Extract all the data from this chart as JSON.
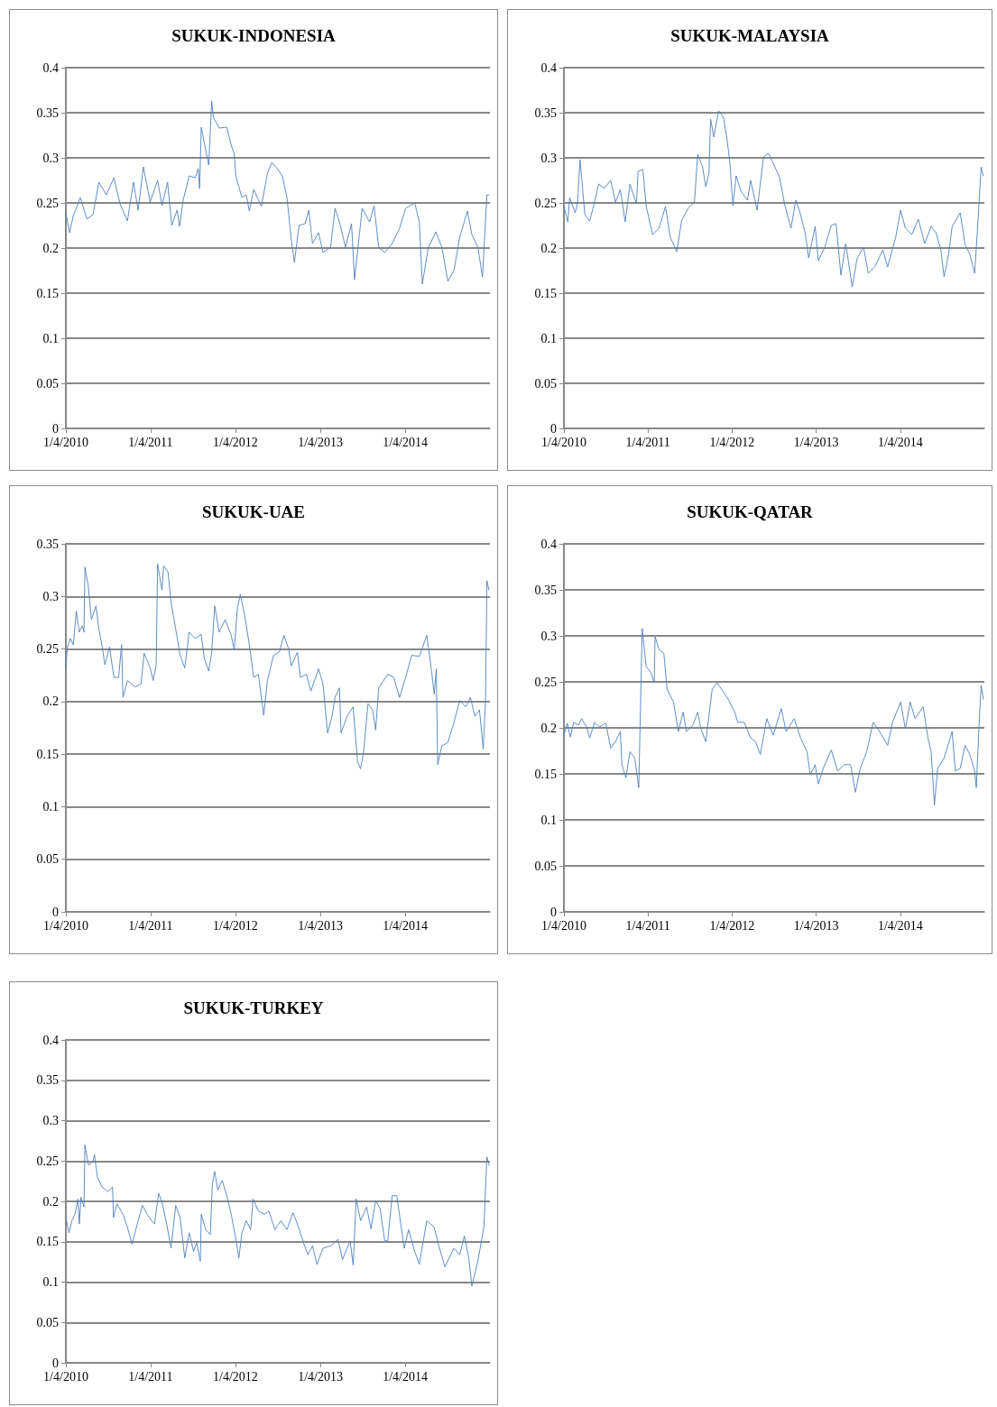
{
  "chart_data": [
    {
      "type": "line",
      "title": "SUKUK-INDONESIA",
      "color": "#4f81bd",
      "marker": "none",
      "grid": "y",
      "xlim": [
        "2010-01-04",
        "2015-01-04"
      ],
      "xticks": [
        {
          "value": "2010-01-04",
          "label": "1/4/2010"
        },
        {
          "value": "2011-01-04",
          "label": "1/4/2011"
        },
        {
          "value": "2012-01-04",
          "label": "1/4/2012"
        },
        {
          "value": "2013-01-04",
          "label": "1/4/2013"
        },
        {
          "value": "2014-01-04",
          "label": "1/4/2014"
        }
      ],
      "ylim": [
        0,
        0.4
      ],
      "yticks": [
        0,
        0.05,
        0.1,
        0.15,
        0.2,
        0.25,
        0.3,
        0.35,
        0.4
      ],
      "x": [
        "2010-01-04",
        "2010-01-20",
        "2010-02-04",
        "2010-03-07",
        "2010-04-05",
        "2010-05-01",
        "2010-05-26",
        "2010-06-28",
        "2010-07-30",
        "2010-08-25",
        "2010-09-26",
        "2010-10-22",
        "2010-11-11",
        "2010-12-04",
        "2011-01-02",
        "2011-02-03",
        "2011-02-22",
        "2011-03-18",
        "2011-04-05",
        "2011-04-28",
        "2011-05-09",
        "2011-05-24",
        "2011-06-19",
        "2011-07-15",
        "2011-07-28",
        "2011-08-03",
        "2011-08-10",
        "2011-09-11",
        "2011-09-24",
        "2011-10-01",
        "2011-10-26",
        "2011-11-28",
        "2011-12-17",
        "2011-12-30",
        "2012-01-06",
        "2012-02-01",
        "2012-02-20",
        "2012-03-04",
        "2012-03-23",
        "2012-04-25",
        "2012-05-21",
        "2012-06-09",
        "2012-07-05",
        "2012-07-24",
        "2012-08-13",
        "2012-09-01",
        "2012-09-14",
        "2012-10-04",
        "2012-10-30",
        "2012-11-15",
        "2012-12-01",
        "2012-12-27",
        "2013-01-15",
        "2013-02-17",
        "2013-03-08",
        "2013-03-27",
        "2013-04-22",
        "2013-05-18",
        "2013-05-31",
        "2013-07-03",
        "2013-08-04",
        "2013-08-23",
        "2013-09-12",
        "2013-10-08",
        "2013-11-09",
        "2013-12-11",
        "2014-01-06",
        "2014-02-14",
        "2014-03-06",
        "2014-03-19",
        "2014-04-13",
        "2014-05-16",
        "2014-06-11",
        "2014-07-07",
        "2014-08-02",
        "2014-08-27",
        "2014-09-29",
        "2014-10-18",
        "2014-11-13",
        "2014-12-03",
        "2014-12-22",
        "2014-12-31"
      ],
      "values": [
        0.239,
        0.217,
        0.235,
        0.256,
        0.232,
        0.237,
        0.273,
        0.259,
        0.278,
        0.249,
        0.23,
        0.273,
        0.242,
        0.29,
        0.251,
        0.275,
        0.247,
        0.273,
        0.225,
        0.242,
        0.224,
        0.253,
        0.28,
        0.278,
        0.288,
        0.266,
        0.334,
        0.292,
        0.363,
        0.345,
        0.333,
        0.334,
        0.314,
        0.304,
        0.28,
        0.256,
        0.259,
        0.241,
        0.265,
        0.246,
        0.283,
        0.295,
        0.287,
        0.28,
        0.256,
        0.208,
        0.184,
        0.225,
        0.227,
        0.242,
        0.205,
        0.217,
        0.195,
        0.201,
        0.244,
        0.229,
        0.201,
        0.227,
        0.165,
        0.244,
        0.229,
        0.247,
        0.201,
        0.195,
        0.205,
        0.222,
        0.244,
        0.25,
        0.229,
        0.16,
        0.2,
        0.218,
        0.201,
        0.163,
        0.175,
        0.212,
        0.241,
        0.215,
        0.201,
        0.168,
        0.259,
        0.259
      ]
    },
    {
      "type": "line",
      "title": "SUKUK-MALAYSIA",
      "color": "#4f81bd",
      "marker": "none",
      "grid": "y",
      "xlim": [
        "2010-01-04",
        "2015-01-04"
      ],
      "xticks": [
        {
          "value": "2010-01-04",
          "label": "1/4/2010"
        },
        {
          "value": "2011-01-04",
          "label": "1/4/2011"
        },
        {
          "value": "2012-01-04",
          "label": "1/4/2012"
        },
        {
          "value": "2013-01-04",
          "label": "1/4/2013"
        },
        {
          "value": "2014-01-04",
          "label": "1/4/2014"
        }
      ],
      "ylim": [
        0,
        0.4
      ],
      "yticks": [
        0,
        0.05,
        0.1,
        0.15,
        0.2,
        0.25,
        0.3,
        0.35,
        0.4
      ],
      "x": [
        "2010-01-04",
        "2010-01-21",
        "2010-01-29",
        "2010-02-22",
        "2010-03-04",
        "2010-03-15",
        "2010-03-26",
        "2010-04-05",
        "2010-04-26",
        "2010-05-17",
        "2010-06-04",
        "2010-06-28",
        "2010-07-26",
        "2010-08-16",
        "2010-09-06",
        "2010-09-27",
        "2010-10-18",
        "2010-11-15",
        "2010-11-22",
        "2010-12-13",
        "2010-12-27",
        "2011-01-24",
        "2011-02-21",
        "2011-03-21",
        "2011-04-11",
        "2011-05-09",
        "2011-05-30",
        "2011-06-27",
        "2011-07-25",
        "2011-08-08",
        "2011-08-29",
        "2011-09-12",
        "2011-09-26",
        "2011-10-03",
        "2011-10-17",
        "2011-11-07",
        "2011-11-28",
        "2011-12-12",
        "2011-12-25",
        "2012-01-08",
        "2012-01-22",
        "2012-02-12",
        "2012-03-11",
        "2012-03-25",
        "2012-04-22",
        "2012-05-20",
        "2012-06-10",
        "2012-07-01",
        "2012-07-29",
        "2012-08-19",
        "2012-09-16",
        "2012-10-07",
        "2012-10-28",
        "2012-11-18",
        "2012-12-02",
        "2012-12-30",
        "2013-01-13",
        "2013-02-10",
        "2013-03-10",
        "2013-03-31",
        "2013-04-21",
        "2013-05-12",
        "2013-06-09",
        "2013-06-30",
        "2013-07-28",
        "2013-08-18",
        "2013-09-15",
        "2013-10-20",
        "2013-11-10",
        "2013-12-15",
        "2014-01-05",
        "2014-01-26",
        "2014-02-23",
        "2014-03-23",
        "2014-04-20",
        "2014-05-18",
        "2014-06-08",
        "2014-06-29",
        "2014-07-13",
        "2014-08-03",
        "2014-08-17",
        "2014-09-21",
        "2014-10-12",
        "2014-11-02",
        "2014-11-23",
        "2014-12-07",
        "2014-12-21",
        "2014-12-31"
      ],
      "values": [
        0.246,
        0.229,
        0.256,
        0.239,
        0.249,
        0.298,
        0.266,
        0.237,
        0.23,
        0.251,
        0.271,
        0.266,
        0.275,
        0.251,
        0.265,
        0.229,
        0.271,
        0.249,
        0.285,
        0.287,
        0.247,
        0.215,
        0.222,
        0.246,
        0.212,
        0.196,
        0.23,
        0.244,
        0.251,
        0.304,
        0.29,
        0.268,
        0.283,
        0.343,
        0.323,
        0.352,
        0.345,
        0.323,
        0.297,
        0.247,
        0.28,
        0.263,
        0.253,
        0.275,
        0.242,
        0.301,
        0.305,
        0.294,
        0.278,
        0.249,
        0.222,
        0.253,
        0.237,
        0.215,
        0.189,
        0.224,
        0.186,
        0.201,
        0.225,
        0.227,
        0.17,
        0.205,
        0.157,
        0.188,
        0.201,
        0.172,
        0.179,
        0.198,
        0.179,
        0.212,
        0.242,
        0.222,
        0.215,
        0.232,
        0.205,
        0.224,
        0.217,
        0.198,
        0.168,
        0.195,
        0.224,
        0.239,
        0.204,
        0.193,
        0.172,
        0.229,
        0.29,
        0.28
      ]
    },
    {
      "type": "line",
      "title": "SUKUK-UAE",
      "color": "#4f81bd",
      "marker": "none",
      "grid": "y",
      "xlim": [
        "2010-01-04",
        "2015-01-04"
      ],
      "xticks": [
        {
          "value": "2010-01-04",
          "label": "1/4/2010"
        },
        {
          "value": "2011-01-04",
          "label": "1/4/2011"
        },
        {
          "value": "2012-01-04",
          "label": "1/4/2012"
        },
        {
          "value": "2013-01-04",
          "label": "1/4/2013"
        },
        {
          "value": "2014-01-04",
          "label": "1/4/2014"
        }
      ],
      "ylim": [
        0,
        0.35
      ],
      "yticks": [
        0,
        0.05,
        0.1,
        0.15,
        0.2,
        0.25,
        0.3,
        0.35
      ],
      "x": [
        "2010-01-04",
        "2010-01-10",
        "2010-01-23",
        "2010-02-05",
        "2010-02-18",
        "2010-03-03",
        "2010-03-16",
        "2010-03-23",
        "2010-03-27",
        "2010-04-11",
        "2010-04-24",
        "2010-05-14",
        "2010-05-26",
        "2010-06-08",
        "2010-06-21",
        "2010-07-11",
        "2010-07-30",
        "2010-08-19",
        "2010-09-01",
        "2010-09-07",
        "2010-09-26",
        "2010-10-29",
        "2010-11-24",
        "2010-12-07",
        "2011-01-02",
        "2011-01-15",
        "2011-01-28",
        "2011-02-03",
        "2011-02-22",
        "2011-03-01",
        "2011-03-20",
        "2011-04-02",
        "2011-04-22",
        "2011-05-11",
        "2011-05-31",
        "2011-06-19",
        "2011-07-15",
        "2011-08-10",
        "2011-08-23",
        "2011-09-11",
        "2011-09-24",
        "2011-10-07",
        "2011-10-26",
        "2011-11-21",
        "2011-12-17",
        "2011-12-30",
        "2012-01-12",
        "2012-01-25",
        "2012-02-14",
        "2012-03-04",
        "2012-03-23",
        "2012-04-12",
        "2012-05-05",
        "2012-05-21",
        "2012-06-16",
        "2012-07-11",
        "2012-07-31",
        "2012-08-19",
        "2012-09-01",
        "2012-09-27",
        "2012-10-10",
        "2012-11-05",
        "2012-11-24",
        "2012-12-27",
        "2013-01-15",
        "2013-02-04",
        "2013-02-23",
        "2013-03-08",
        "2013-03-27",
        "2013-04-03",
        "2013-04-29",
        "2013-05-25",
        "2013-06-13",
        "2013-06-26",
        "2013-07-09",
        "2013-07-28",
        "2013-08-17",
        "2013-08-30",
        "2013-09-12",
        "2013-10-21",
        "2013-11-16",
        "2013-12-11",
        "2014-01-06",
        "2014-02-01",
        "2014-03-06",
        "2014-04-07",
        "2014-04-26",
        "2014-05-09",
        "2014-05-18",
        "2014-05-24",
        "2014-06-11",
        "2014-07-07",
        "2014-08-02",
        "2014-08-27",
        "2014-09-22",
        "2014-10-12",
        "2014-10-31",
        "2014-11-20",
        "2014-12-06",
        "2014-12-16",
        "2014-12-22",
        "2014-12-31"
      ],
      "values": [
        0.232,
        0.251,
        0.26,
        0.254,
        0.286,
        0.266,
        0.272,
        0.266,
        0.328,
        0.309,
        0.278,
        0.291,
        0.269,
        0.254,
        0.235,
        0.252,
        0.223,
        0.223,
        0.254,
        0.204,
        0.22,
        0.214,
        0.217,
        0.246,
        0.232,
        0.22,
        0.235,
        0.331,
        0.306,
        0.329,
        0.323,
        0.294,
        0.269,
        0.244,
        0.232,
        0.266,
        0.26,
        0.264,
        0.241,
        0.229,
        0.247,
        0.291,
        0.266,
        0.278,
        0.263,
        0.249,
        0.288,
        0.302,
        0.281,
        0.254,
        0.223,
        0.226,
        0.187,
        0.22,
        0.244,
        0.247,
        0.263,
        0.251,
        0.234,
        0.247,
        0.223,
        0.226,
        0.21,
        0.231,
        0.217,
        0.17,
        0.186,
        0.204,
        0.213,
        0.17,
        0.186,
        0.195,
        0.143,
        0.136,
        0.152,
        0.198,
        0.192,
        0.173,
        0.213,
        0.226,
        0.223,
        0.204,
        0.223,
        0.244,
        0.243,
        0.263,
        0.232,
        0.207,
        0.231,
        0.14,
        0.158,
        0.161,
        0.18,
        0.201,
        0.195,
        0.204,
        0.186,
        0.192,
        0.155,
        0.201,
        0.315,
        0.306
      ]
    },
    {
      "type": "line",
      "title": "SUKUK-QATAR",
      "color": "#4f81bd",
      "marker": "none",
      "grid": "y",
      "xlim": [
        "2010-01-04",
        "2015-01-04"
      ],
      "xticks": [
        {
          "value": "2010-01-04",
          "label": "1/4/2010"
        },
        {
          "value": "2011-01-04",
          "label": "1/4/2011"
        },
        {
          "value": "2012-01-04",
          "label": "1/4/2012"
        },
        {
          "value": "2013-01-04",
          "label": "1/4/2013"
        },
        {
          "value": "2014-01-04",
          "label": "1/4/2014"
        }
      ],
      "ylim": [
        0,
        0.4
      ],
      "yticks": [
        0,
        0.05,
        0.1,
        0.15,
        0.2,
        0.25,
        0.3,
        0.35,
        0.4
      ],
      "x": [
        "2010-01-04",
        "2010-01-18",
        "2010-02-01",
        "2010-02-15",
        "2010-03-08",
        "2010-03-22",
        "2010-04-12",
        "2010-04-26",
        "2010-05-17",
        "2010-06-07",
        "2010-07-05",
        "2010-07-26",
        "2010-08-16",
        "2010-09-06",
        "2010-09-13",
        "2010-09-30",
        "2010-10-18",
        "2010-11-08",
        "2010-11-25",
        "2010-12-10",
        "2010-12-27",
        "2011-01-17",
        "2011-01-31",
        "2011-02-04",
        "2011-02-21",
        "2011-03-14",
        "2011-03-28",
        "2011-04-25",
        "2011-05-16",
        "2011-06-06",
        "2011-06-20",
        "2011-07-18",
        "2011-08-08",
        "2011-08-22",
        "2011-09-12",
        "2011-10-10",
        "2011-10-31",
        "2011-11-28",
        "2011-12-19",
        "2012-01-16",
        "2012-01-29",
        "2012-02-26",
        "2012-03-25",
        "2012-04-15",
        "2012-05-06",
        "2012-06-03",
        "2012-07-01",
        "2012-08-05",
        "2012-08-26",
        "2012-09-30",
        "2012-10-28",
        "2012-11-25",
        "2012-12-09",
        "2012-12-30",
        "2013-01-13",
        "2013-02-03",
        "2013-03-10",
        "2013-04-07",
        "2013-05-05",
        "2013-06-02",
        "2013-06-23",
        "2013-07-14",
        "2013-08-11",
        "2013-09-08",
        "2013-10-06",
        "2013-11-10",
        "2013-12-01",
        "2014-01-05",
        "2014-01-26",
        "2014-02-16",
        "2014-03-09",
        "2014-04-13",
        "2014-05-04",
        "2014-05-18",
        "2014-06-01",
        "2014-06-15",
        "2014-07-13",
        "2014-08-17",
        "2014-08-31",
        "2014-09-21",
        "2014-10-12",
        "2014-11-02",
        "2014-11-23",
        "2014-11-30",
        "2014-12-14",
        "2014-12-21",
        "2014-12-31"
      ],
      "values": [
        0.192,
        0.205,
        0.19,
        0.206,
        0.203,
        0.21,
        0.201,
        0.189,
        0.206,
        0.201,
        0.205,
        0.178,
        0.185,
        0.196,
        0.16,
        0.146,
        0.174,
        0.167,
        0.135,
        0.308,
        0.267,
        0.26,
        0.249,
        0.299,
        0.285,
        0.281,
        0.242,
        0.228,
        0.196,
        0.217,
        0.196,
        0.203,
        0.217,
        0.199,
        0.185,
        0.242,
        0.249,
        0.239,
        0.231,
        0.217,
        0.206,
        0.206,
        0.189,
        0.185,
        0.171,
        0.21,
        0.192,
        0.221,
        0.196,
        0.21,
        0.189,
        0.174,
        0.149,
        0.16,
        0.139,
        0.156,
        0.176,
        0.153,
        0.16,
        0.16,
        0.13,
        0.156,
        0.174,
        0.206,
        0.196,
        0.181,
        0.206,
        0.228,
        0.199,
        0.228,
        0.21,
        0.223,
        0.189,
        0.174,
        0.116,
        0.156,
        0.167,
        0.196,
        0.153,
        0.156,
        0.181,
        0.171,
        0.153,
        0.135,
        0.214,
        0.246,
        0.231
      ]
    },
    {
      "type": "line",
      "title": "SUKUK-TURKEY",
      "color": "#4f81bd",
      "marker": "none",
      "grid": "y",
      "xlim": [
        "2010-01-04",
        "2015-01-04"
      ],
      "xticks": [
        {
          "value": "2010-01-04",
          "label": "1/4/2010"
        },
        {
          "value": "2011-01-04",
          "label": "1/4/2011"
        },
        {
          "value": "2012-01-04",
          "label": "1/4/2012"
        },
        {
          "value": "2013-01-04",
          "label": "1/4/2013"
        },
        {
          "value": "2014-01-04",
          "label": "1/4/2014"
        }
      ],
      "ylim": [
        0,
        0.4
      ],
      "yticks": [
        0,
        0.05,
        0.1,
        0.15,
        0.2,
        0.25,
        0.3,
        0.35,
        0.4
      ],
      "x": [
        "2010-01-04",
        "2010-01-17",
        "2010-01-30",
        "2010-02-12",
        "2010-02-25",
        "2010-03-03",
        "2010-03-10",
        "2010-03-23",
        "2010-03-27",
        "2010-04-11",
        "2010-05-01",
        "2010-05-07",
        "2010-05-20",
        "2010-06-08",
        "2010-07-04",
        "2010-07-24",
        "2010-07-28",
        "2010-08-12",
        "2010-09-07",
        "2010-09-26",
        "2010-10-16",
        "2010-11-11",
        "2010-11-30",
        "2010-12-20",
        "2011-01-08",
        "2011-01-21",
        "2011-02-07",
        "2011-02-22",
        "2011-03-14",
        "2011-04-02",
        "2011-04-22",
        "2011-05-11",
        "2011-05-31",
        "2011-06-19",
        "2011-07-08",
        "2011-07-21",
        "2011-08-06",
        "2011-08-10",
        "2011-08-29",
        "2011-09-18",
        "2011-09-27",
        "2011-10-07",
        "2011-10-20",
        "2011-11-08",
        "2011-11-28",
        "2011-12-17",
        "2012-01-06",
        "2012-01-19",
        "2012-02-01",
        "2012-02-20",
        "2012-03-10",
        "2012-03-20",
        "2012-04-12",
        "2012-05-08",
        "2012-05-27",
        "2012-06-22",
        "2012-07-18",
        "2012-08-13",
        "2012-09-08",
        "2012-09-27",
        "2012-10-23",
        "2012-11-11",
        "2012-12-01",
        "2012-12-20",
        "2013-01-15",
        "2013-02-17",
        "2013-03-21",
        "2013-04-09",
        "2013-05-12",
        "2013-05-25",
        "2013-06-07",
        "2013-06-26",
        "2013-07-22",
        "2013-08-10",
        "2013-08-30",
        "2013-09-18",
        "2013-10-08",
        "2013-10-21",
        "2013-11-09",
        "2013-11-29",
        "2013-12-18",
        "2013-12-31",
        "2014-01-19",
        "2014-02-14",
        "2014-03-06",
        "2014-04-07",
        "2014-05-09",
        "2014-05-29",
        "2014-06-24",
        "2014-08-02",
        "2014-08-27",
        "2014-09-16",
        "2014-10-05",
        "2014-10-18",
        "2014-11-13",
        "2014-12-09",
        "2014-12-22",
        "2014-12-31"
      ],
      "values": [
        0.18,
        0.161,
        0.176,
        0.184,
        0.203,
        0.172,
        0.205,
        0.193,
        0.27,
        0.245,
        0.249,
        0.258,
        0.23,
        0.218,
        0.212,
        0.218,
        0.18,
        0.197,
        0.184,
        0.168,
        0.147,
        0.176,
        0.195,
        0.184,
        0.176,
        0.172,
        0.21,
        0.199,
        0.172,
        0.142,
        0.195,
        0.18,
        0.13,
        0.161,
        0.138,
        0.149,
        0.126,
        0.184,
        0.165,
        0.159,
        0.222,
        0.237,
        0.214,
        0.226,
        0.207,
        0.184,
        0.153,
        0.13,
        0.161,
        0.176,
        0.165,
        0.203,
        0.188,
        0.184,
        0.188,
        0.165,
        0.176,
        0.165,
        0.186,
        0.172,
        0.149,
        0.134,
        0.145,
        0.122,
        0.142,
        0.145,
        0.153,
        0.128,
        0.151,
        0.121,
        0.203,
        0.176,
        0.193,
        0.166,
        0.201,
        0.191,
        0.151,
        0.151,
        0.207,
        0.207,
        0.168,
        0.142,
        0.165,
        0.138,
        0.122,
        0.176,
        0.168,
        0.145,
        0.119,
        0.142,
        0.134,
        0.157,
        0.13,
        0.095,
        0.126,
        0.168,
        0.255,
        0.245
      ]
    }
  ]
}
